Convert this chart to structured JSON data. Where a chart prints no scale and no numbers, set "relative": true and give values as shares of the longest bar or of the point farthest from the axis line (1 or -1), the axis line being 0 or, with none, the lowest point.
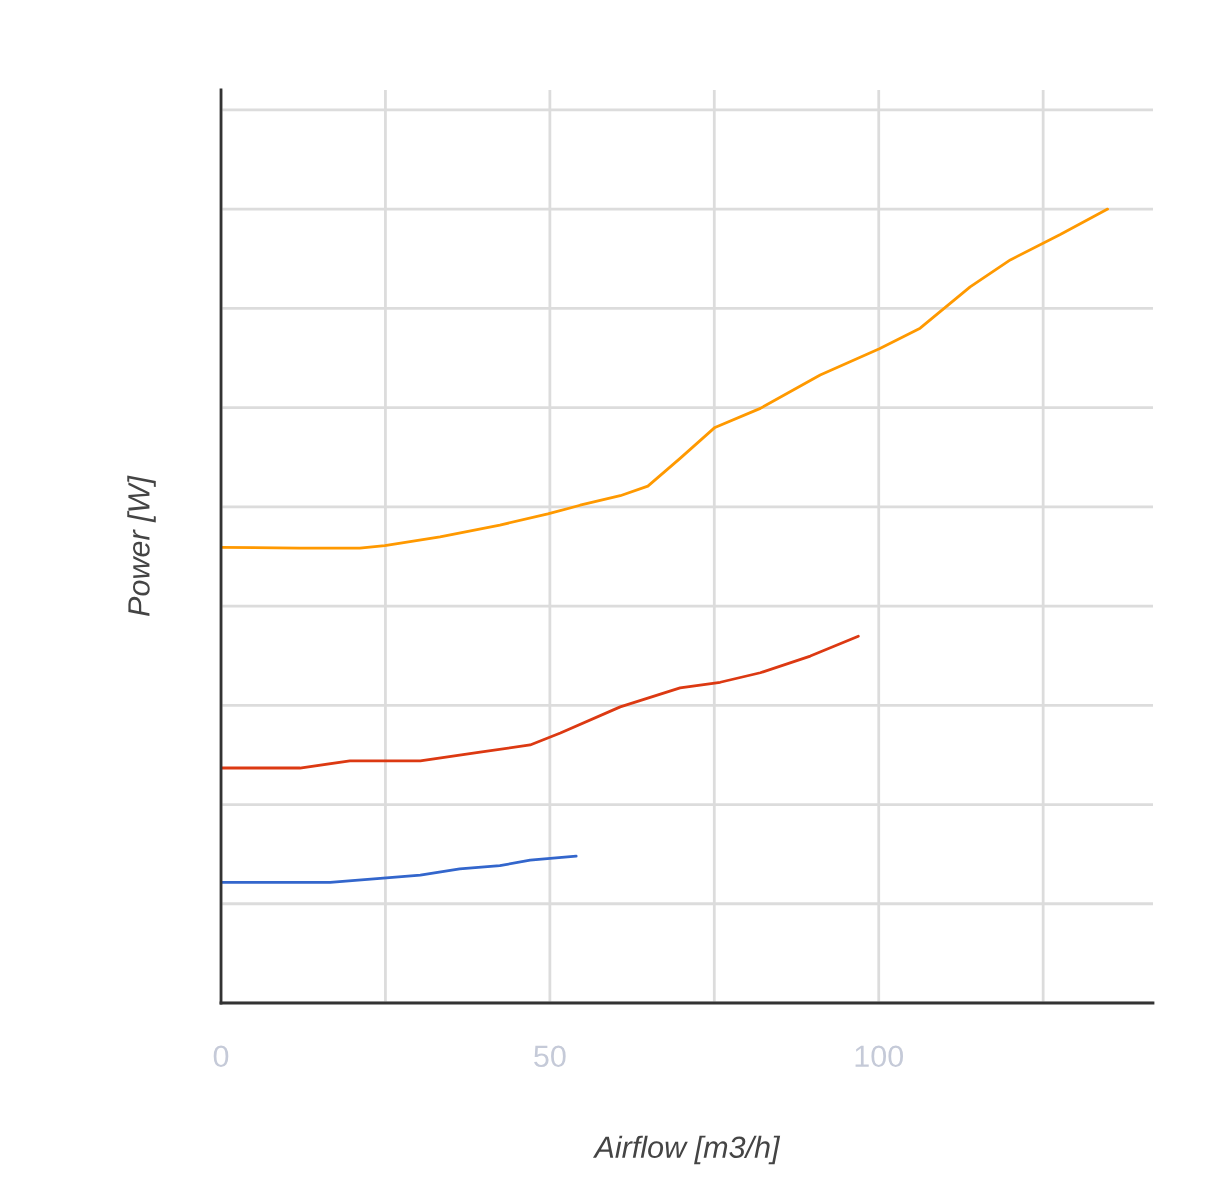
{
  "chart_data": {
    "type": "line",
    "xlabel": "Airflow [m3/h]",
    "ylabel": "Power [W]",
    "relative": true,
    "grid": true,
    "xlim": [
      0,
      141.7
    ],
    "xticks": [
      0,
      {
        "value": 25,
        "label": null
      },
      50,
      {
        "value": 75,
        "label": null
      },
      100,
      {
        "value": 125,
        "label": null
      }
    ],
    "series": [
      {
        "color": "#ff9900",
        "x": [
          0,
          12.0,
          21.1,
          24.9,
          33.3,
          42.4,
          49.7,
          54.6,
          60.7,
          64.9,
          69.8,
          75.1,
          82.0,
          91.1,
          100.1,
          106.3,
          113.9,
          120.0,
          127.6,
          134.8
        ],
        "values": [
          0.574,
          0.573,
          0.573,
          0.576,
          0.587,
          0.602,
          0.616,
          0.627,
          0.639,
          0.651,
          0.686,
          0.725,
          0.749,
          0.791,
          0.824,
          0.85,
          0.902,
          0.936,
          0.968,
          1.0
        ]
      },
      {
        "color": "#dc3912",
        "x": [
          0,
          12.0,
          19.6,
          30.3,
          39.4,
          47.0,
          51.6,
          60.7,
          69.8,
          75.9,
          82.0,
          89.6,
          96.9
        ],
        "values": [
          0.296,
          0.296,
          0.305,
          0.305,
          0.316,
          0.325,
          0.34,
          0.373,
          0.397,
          0.404,
          0.416,
          0.437,
          0.462
        ]
      },
      {
        "color": "#3366cc",
        "x": [
          0,
          16.6,
          24.2,
          30.3,
          36.3,
          42.4,
          47.0,
          54.0
        ],
        "values": [
          0.152,
          0.152,
          0.157,
          0.161,
          0.169,
          0.173,
          0.18,
          0.185
        ]
      }
    ]
  }
}
